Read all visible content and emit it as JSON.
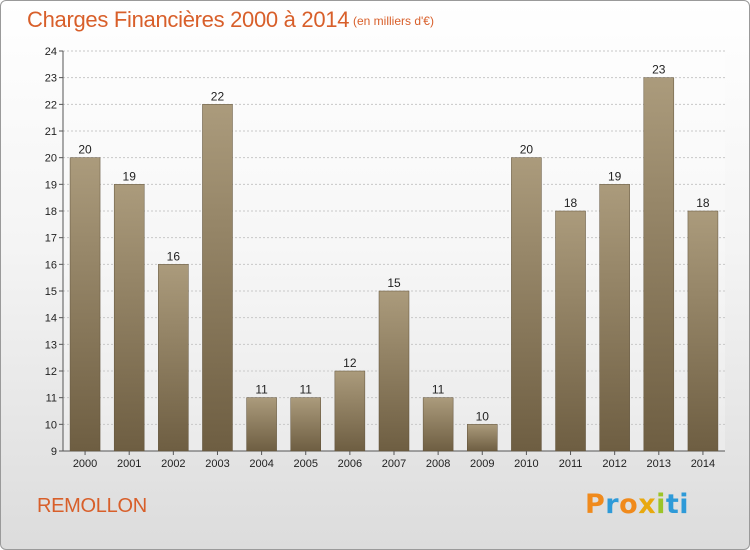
{
  "header": {
    "title": "Charges Financières 2000 à 2014",
    "subtitle": "(en milliers d'€)"
  },
  "footer": {
    "commune": "REMOLLON",
    "logo_letters": [
      "P",
      "r",
      "o",
      "x",
      "i",
      "t",
      "i"
    ],
    "logo_colors": [
      "#f08a1c",
      "#2e9ad8",
      "#f08a1c",
      "#e8a90e",
      "#9cc428",
      "#2e9ad8",
      "#2e9ad8"
    ]
  },
  "chart_data": {
    "type": "bar",
    "categories": [
      "2000",
      "2001",
      "2002",
      "2003",
      "2004",
      "2005",
      "2006",
      "2007",
      "2008",
      "2009",
      "2010",
      "2011",
      "2012",
      "2013",
      "2014"
    ],
    "values": [
      20,
      19,
      16,
      22,
      11,
      11,
      12,
      15,
      11,
      10,
      20,
      18,
      19,
      23,
      18
    ],
    "ylim": [
      9,
      24
    ],
    "yticks": [
      9,
      10,
      11,
      12,
      13,
      14,
      15,
      16,
      17,
      18,
      19,
      20,
      21,
      22,
      23,
      24
    ],
    "grid": true,
    "colors": {
      "bar_top": "#ab9b7c",
      "bar_bottom": "#6e5e42",
      "grid": "#c8c8c8",
      "axis": "#555555",
      "text": "#222222"
    }
  }
}
